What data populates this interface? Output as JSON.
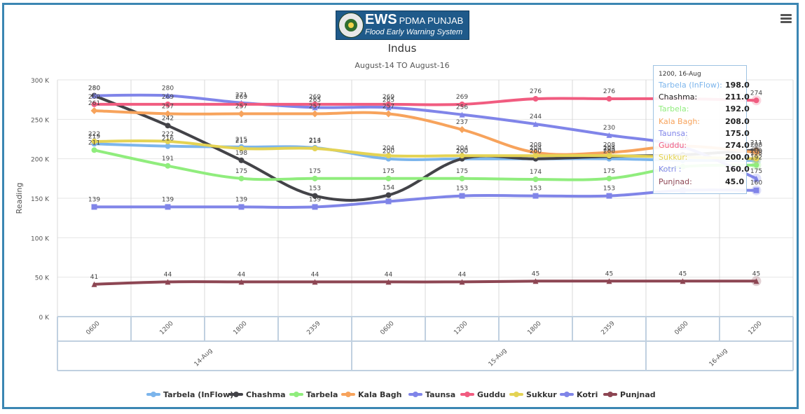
{
  "header": {
    "logo_title": "EWS",
    "logo_subtitle": "PDMA PUNJAB",
    "logo_tagline": "Flood Early Warning System",
    "menu_icon": "hamburger-menu-icon"
  },
  "chart_data": {
    "type": "line",
    "title": "Indus",
    "subtitle": "August-14 TO August-16",
    "ylabel": "Reading",
    "xlabel": "",
    "ylim": [
      0,
      300000
    ],
    "y_ticks": [
      "0 K",
      "50 K",
      "100 K",
      "150 K",
      "200 K",
      "250 K",
      "300 K"
    ],
    "x_ticks": [
      "0600",
      "1200",
      "1800",
      "2359",
      "0600",
      "1200",
      "1800",
      "2359",
      "0600",
      "1200"
    ],
    "x_groups": [
      {
        "label": "14-Aug"
      },
      {
        "label": "15-Aug"
      },
      {
        "label": "16-Aug"
      }
    ],
    "grid": true,
    "legend_position": "bottom",
    "series": [
      {
        "name": "Tarbela (InFlow)",
        "color": "#7cb5ec",
        "marker": "circle",
        "values": [
          219,
          216,
          215,
          214,
          200,
          200,
          200,
          200,
          198,
          198
        ],
        "labels": [
          "219",
          "216",
          "215",
          "214",
          "200",
          "200",
          "200",
          "200",
          "",
          "198"
        ]
      },
      {
        "name": "Chashma",
        "color": "#434348",
        "marker": "circle",
        "values": [
          280,
          242,
          198,
          153,
          154,
          200,
          200,
          203,
          205,
          211
        ],
        "labels": [
          "280",
          "242",
          "198",
          "153",
          "154",
          "200",
          "200",
          "203",
          "",
          "211"
        ]
      },
      {
        "name": "Tarbela",
        "color": "#90ed7d",
        "marker": "circle",
        "values": [
          211,
          191,
          175,
          175,
          175,
          175,
          174,
          175,
          190,
          192
        ],
        "labels": [
          "211",
          "191",
          "175",
          "175",
          "175",
          "175",
          "174",
          "175",
          "",
          "192"
        ]
      },
      {
        "name": "Kala Bagh",
        "color": "#f7a35c",
        "marker": "diamond",
        "values": [
          261,
          257,
          257,
          257,
          257,
          237,
          208,
          208,
          216,
          208
        ],
        "labels": [
          "261",
          "257",
          "257",
          "257",
          "257",
          "237",
          "208",
          "208",
          "216",
          "208"
        ]
      },
      {
        "name": "Taunsa",
        "color": "#8085e9",
        "marker": "triangle",
        "values": [
          280,
          280,
          271,
          265,
          265,
          256,
          244,
          230,
          215,
          175
        ],
        "labels": [
          "280",
          "280",
          "271",
          "265",
          "265",
          "256",
          "244",
          "230",
          "",
          "175"
        ]
      },
      {
        "name": "Guddu",
        "color": "#f15c80",
        "marker": "circle",
        "values": [
          269,
          269,
          269,
          269,
          269,
          269,
          276,
          276,
          276,
          274
        ],
        "labels": [
          "269",
          "269",
          "269",
          "269",
          "269",
          "269",
          "276",
          "276",
          "",
          "274"
        ]
      },
      {
        "name": "Sukkur",
        "color": "#e4d354",
        "marker": "circle",
        "values": [
          222,
          222,
          213,
          213,
          204,
          204,
          204,
          204,
          202,
          200
        ],
        "labels": [
          "222",
          "222",
          "213",
          "213",
          "204",
          "204",
          "204",
          "204",
          "",
          "200"
        ]
      },
      {
        "name": "Kotri",
        "color": "#8085e8",
        "marker": "square",
        "values": [
          139,
          139,
          139,
          139,
          146,
          153,
          153,
          153,
          160,
          160
        ],
        "labels": [
          "139",
          "139",
          "139",
          "139",
          "",
          "153",
          "153",
          "153",
          "",
          "160"
        ]
      },
      {
        "name": "Punjnad",
        "color": "#8d4653",
        "marker": "triangle",
        "values": [
          41,
          44,
          44,
          44,
          44,
          44,
          45,
          45,
          45,
          45
        ],
        "labels": [
          "41",
          "44",
          "44",
          "44",
          "44",
          "44",
          "45",
          "45",
          "45",
          "45"
        ]
      }
    ],
    "value_scale": 1000,
    "tooltip": {
      "header": "1200, 16-Aug",
      "rows": [
        {
          "name": "Tarbela (InFlow):",
          "value": "198.0"
        },
        {
          "name": "Chashma:",
          "value": "211.0"
        },
        {
          "name": "Tarbela:",
          "value": "192.0"
        },
        {
          "name": "Kala Bagh:",
          "value": "208.0"
        },
        {
          "name": "Taunsa:",
          "value": "175.0"
        },
        {
          "name": "Guddu:",
          "value": "274.0"
        },
        {
          "name": "Sukkur:",
          "value": "200.0"
        },
        {
          "name": "Kotri :",
          "value": "160.0"
        },
        {
          "name": "Punjnad:",
          "value": "45.0"
        }
      ]
    }
  }
}
